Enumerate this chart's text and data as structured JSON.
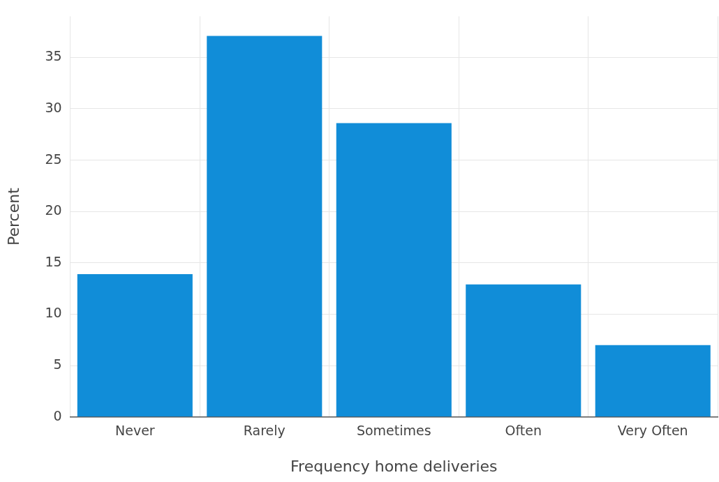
{
  "chart_data": {
    "type": "bar",
    "xlabel": "Frequency home deliveries",
    "ylabel": "Percent",
    "categories": [
      "Never",
      "Rarely",
      "Sometimes",
      "Often",
      "Very Often"
    ],
    "values": [
      13.9,
      37.1,
      28.6,
      12.9,
      7.0
    ],
    "color": "#118dd8",
    "ylim": [
      0,
      39
    ],
    "yticks": [
      0,
      5,
      10,
      15,
      20,
      25,
      30,
      35
    ],
    "grid": true
  }
}
